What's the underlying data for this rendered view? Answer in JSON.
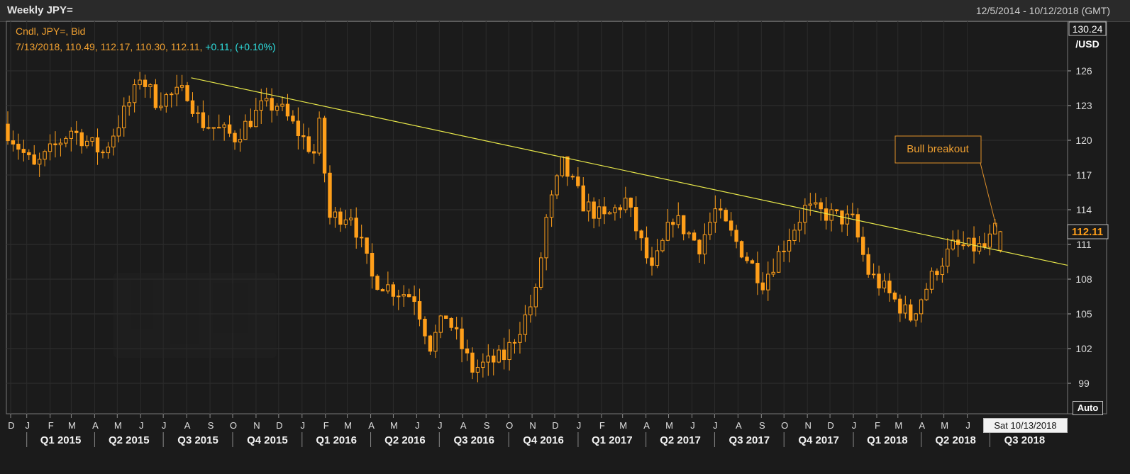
{
  "header": {
    "title": "Weekly JPY=",
    "date_range": "12/5/2014 - 10/12/2018 (GMT)"
  },
  "legend": {
    "line1": "Cndl, JPY=, Bid",
    "line2_prefix": "7/13/2018, 110.49, 112.17, 110.30, 112.11, ",
    "line2_change": "+0.11, (+0.10%)"
  },
  "axis": {
    "top_value": "130.24",
    "unit": "/USD",
    "last_price": "112.11",
    "y_ticks": [
      126,
      123,
      120,
      117,
      114,
      111,
      108,
      105,
      102,
      99
    ],
    "auto_label": "Auto",
    "current_date": "Sat 10/13/2018"
  },
  "annotation": {
    "text": "Bull breakout"
  },
  "colors": {
    "candle": "#ff9f1a",
    "trendline": "#e8e84a",
    "legend_text": "#f0a030",
    "change_text": "#2ee0e0",
    "background": "#1b1b1b"
  },
  "month_labels": [
    "D",
    "J",
    "F",
    "M",
    "A",
    "M",
    "J",
    "J",
    "A",
    "S",
    "O",
    "N",
    "D",
    "J",
    "F",
    "M",
    "A",
    "M",
    "J",
    "J",
    "A",
    "S",
    "O",
    "N",
    "D",
    "J",
    "F",
    "M",
    "A",
    "M",
    "J",
    "J",
    "A",
    "S",
    "O",
    "N",
    "D",
    "J",
    "F",
    "M",
    "A",
    "M",
    "J"
  ],
  "quarter_labels": [
    "Q1 2015",
    "Q2 2015",
    "Q3 2015",
    "Q4 2015",
    "Q1 2016",
    "Q2 2016",
    "Q3 2016",
    "Q4 2016",
    "Q1 2017",
    "Q2 2017",
    "Q3 2017",
    "Q4 2017",
    "Q1 2018",
    "Q2 2018",
    "Q3 2018"
  ],
  "chart_data": {
    "type": "candlestick",
    "title": "Weekly JPY=",
    "ylabel": "/USD",
    "ylim": [
      98,
      130.24
    ],
    "x_range": [
      "2014-12-05",
      "2018-10-12"
    ],
    "series": [
      {
        "name": "JPY= Bid",
        "points": [
          {
            "date": "2014-12-05",
            "value": 121.4
          },
          {
            "date": "2015-01-16",
            "value": 117.6
          },
          {
            "date": "2015-03-06",
            "value": 120.9
          },
          {
            "date": "2015-04-17",
            "value": 118.9
          },
          {
            "date": "2015-05-29",
            "value": 124.1
          },
          {
            "date": "2015-06-05",
            "value": 125.6
          },
          {
            "date": "2015-06-26",
            "value": 123.5
          },
          {
            "date": "2015-08-07",
            "value": 124.2
          },
          {
            "date": "2015-08-21",
            "value": 122.0
          },
          {
            "date": "2015-08-28",
            "value": 121.5
          },
          {
            "date": "2015-10-09",
            "value": 120.3
          },
          {
            "date": "2015-11-13",
            "value": 122.8
          },
          {
            "date": "2015-12-04",
            "value": 123.1
          },
          {
            "date": "2016-01-22",
            "value": 118.9
          },
          {
            "date": "2016-01-29",
            "value": 121.2
          },
          {
            "date": "2016-02-12",
            "value": 113.3
          },
          {
            "date": "2016-03-11",
            "value": 113.7
          },
          {
            "date": "2016-04-08",
            "value": 108.1
          },
          {
            "date": "2016-05-06",
            "value": 107.1
          },
          {
            "date": "2016-06-03",
            "value": 106.5
          },
          {
            "date": "2016-06-24",
            "value": 102.3
          },
          {
            "date": "2016-07-15",
            "value": 104.9
          },
          {
            "date": "2016-08-19",
            "value": 100.2
          },
          {
            "date": "2016-09-30",
            "value": 101.3
          },
          {
            "date": "2016-10-28",
            "value": 104.7
          },
          {
            "date": "2016-11-11",
            "value": 106.7
          },
          {
            "date": "2016-11-25",
            "value": 113.2
          },
          {
            "date": "2016-12-16",
            "value": 117.9
          },
          {
            "date": "2017-01-13",
            "value": 114.5
          },
          {
            "date": "2017-02-10",
            "value": 113.2
          },
          {
            "date": "2017-03-10",
            "value": 114.8
          },
          {
            "date": "2017-04-14",
            "value": 108.6
          },
          {
            "date": "2017-05-12",
            "value": 113.4
          },
          {
            "date": "2017-06-16",
            "value": 110.9
          },
          {
            "date": "2017-07-07",
            "value": 113.9
          },
          {
            "date": "2017-09-08",
            "value": 107.8
          },
          {
            "date": "2017-11-03",
            "value": 114.1
          },
          {
            "date": "2017-12-08",
            "value": 113.5
          },
          {
            "date": "2018-01-05",
            "value": 113.0
          },
          {
            "date": "2018-01-26",
            "value": 108.6
          },
          {
            "date": "2018-03-23",
            "value": 104.7
          },
          {
            "date": "2018-04-27",
            "value": 109.0
          },
          {
            "date": "2018-05-18",
            "value": 110.8
          },
          {
            "date": "2018-06-29",
            "value": 110.7
          },
          {
            "date": "2018-07-13",
            "value": 112.11
          }
        ]
      },
      {
        "name": "Trendline",
        "points": [
          {
            "date": "2015-08-07",
            "value": 125.4
          },
          {
            "date": "2016-12-16",
            "value": 118.6
          },
          {
            "date": "2017-11-03",
            "value": 114.0
          },
          {
            "date": "2018-10-12",
            "value": 109.2
          }
        ]
      }
    ],
    "last_candle": {
      "date": "2018-07-13",
      "open": 110.49,
      "high": 112.17,
      "low": 110.3,
      "close": 112.11
    }
  }
}
